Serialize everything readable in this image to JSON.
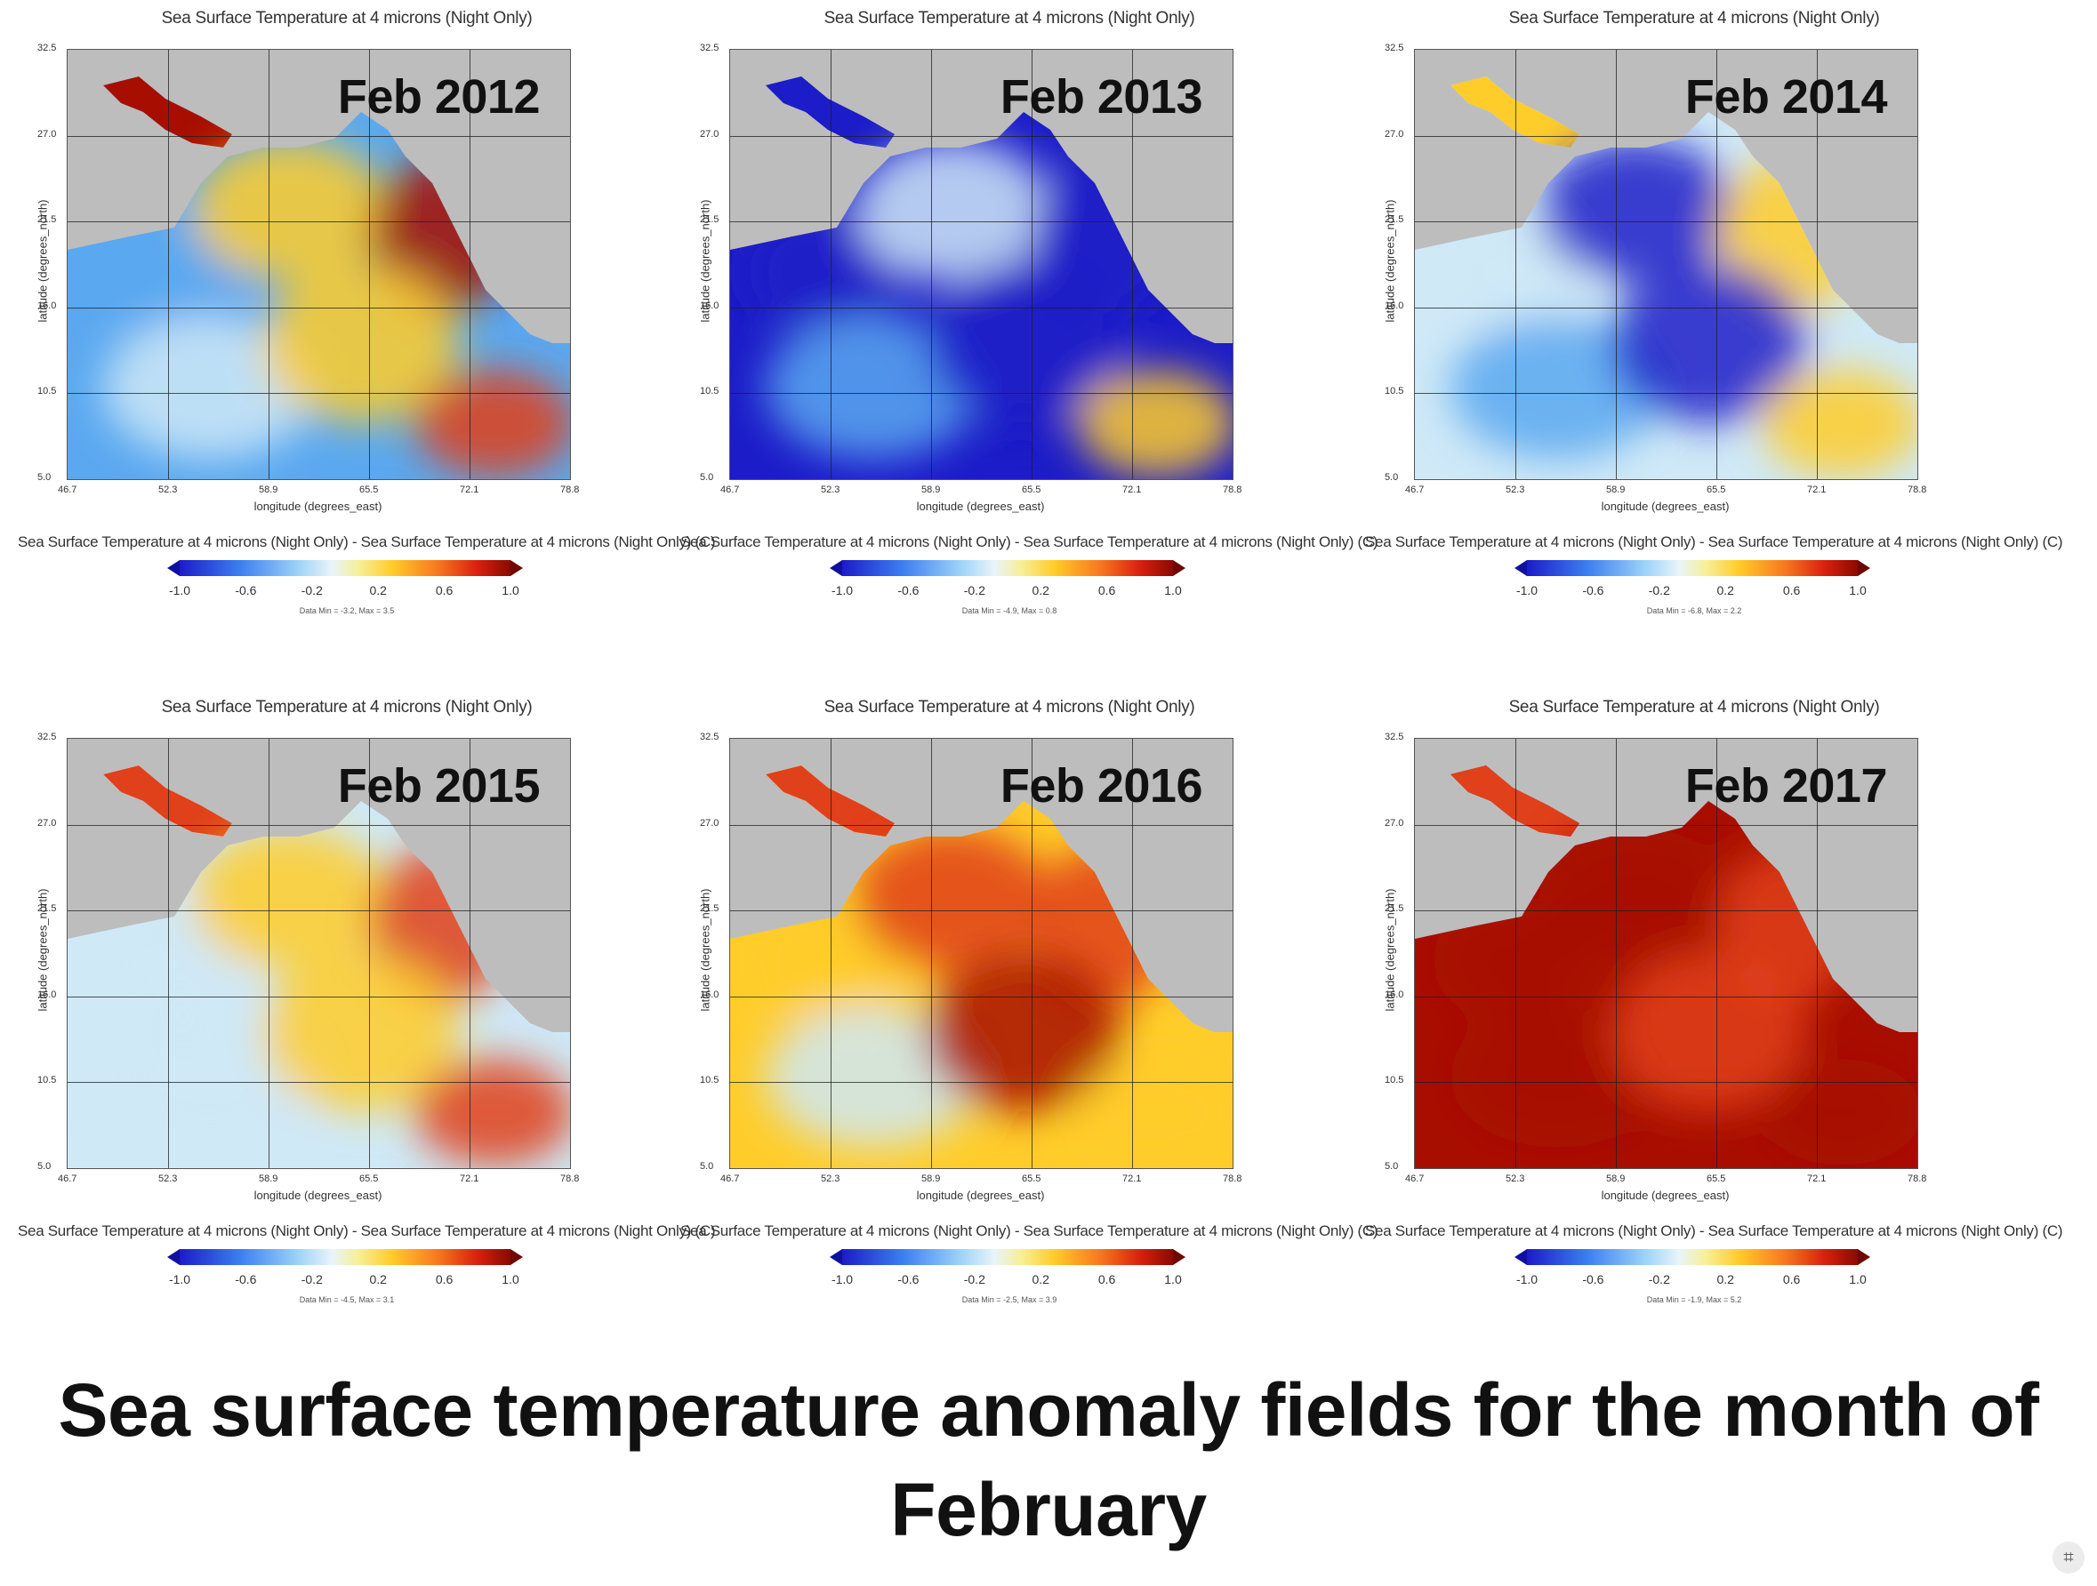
{
  "colors": {
    "land": "#bdbdbd",
    "cold_strong": "#1c1cc8",
    "cold": "#5aa8f0",
    "neutral": "#cfe9f7",
    "warm": "#ffcd2a",
    "hot": "#e0401a",
    "hot_strong": "#a80e00"
  },
  "map_title": "Sea Surface Temperature at 4 microns (Night Only)",
  "colorbar_title": "Sea Surface Temperature at 4 microns (Night Only) - Sea Surface Temperature at 4 microns (Night Only) (C)",
  "xlabel": "longitude (degrees_east)",
  "ylabel": "latitude (degrees_north)",
  "lat_ticks": [
    "32.5",
    "27.0",
    "21.5",
    "16.0",
    "10.5",
    "5.0"
  ],
  "lon_ticks": [
    "46.7",
    "52.3",
    "58.9",
    "65.5",
    "72.1",
    "78.8"
  ],
  "colorbar_ticks": [
    "-1.0",
    "-0.6",
    "-0.2",
    "0.2",
    "0.6",
    "1.0"
  ],
  "panels": [
    {
      "year": "Feb 2012",
      "minmax": "Data Min = -3.2, Max = 3.5",
      "field": [
        "cold",
        "warm",
        "hot_strong",
        "neutral",
        "warm",
        "hot"
      ]
    },
    {
      "year": "Feb 2013",
      "minmax": "Data Min = -4.9, Max = 0.8",
      "field": [
        "cold_strong",
        "neutral",
        "cold_strong",
        "cold",
        "cold_strong",
        "warm"
      ]
    },
    {
      "year": "Feb 2014",
      "minmax": "Data Min = -6.8, Max = 2.2",
      "field": [
        "neutral",
        "cold_strong",
        "warm",
        "cold",
        "cold_strong",
        "warm"
      ]
    },
    {
      "year": "Feb 2015",
      "minmax": "Data Min = -4.5, Max = 3.1",
      "field": [
        "neutral",
        "warm",
        "hot",
        "neutral",
        "warm",
        "hot"
      ]
    },
    {
      "year": "Feb 2016",
      "minmax": "Data Min = -2.5, Max = 3.9",
      "field": [
        "warm",
        "hot",
        "hot",
        "neutral",
        "hot_strong",
        "warm"
      ]
    },
    {
      "year": "Feb 2017",
      "minmax": "Data Min = -1.9, Max = 5.2",
      "field": [
        "hot_strong",
        "hot_strong",
        "hot",
        "hot_strong",
        "hot",
        "hot_strong"
      ]
    }
  ],
  "caption": "Sea surface temperature anomaly fields for the month of February",
  "corner_icon": "text-scan-icon"
}
